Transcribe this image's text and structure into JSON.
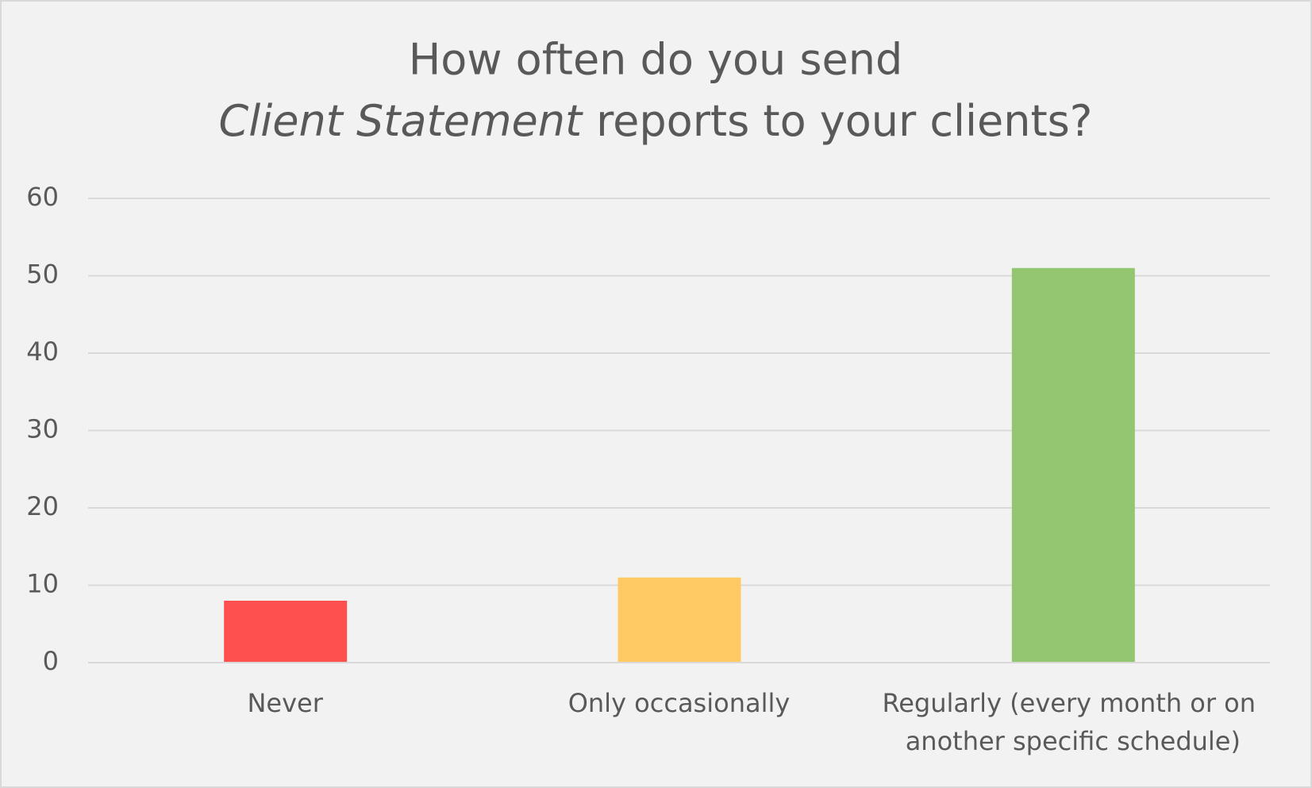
{
  "chart_data": {
    "type": "bar",
    "title": {
      "line1": "How often do you send",
      "line2_italic": "Client Statement",
      "line2_rest": "reports to your clients?"
    },
    "categories": [
      "Never",
      "Only occasionally",
      "Regularly (every month or on another specific schedule)"
    ],
    "values": [
      8,
      11,
      51
    ],
    "colors": [
      "#ff5050",
      "#ffca64",
      "#94c672"
    ],
    "ylim": [
      0,
      60
    ],
    "yticks": [
      0,
      10,
      20,
      30,
      40,
      50,
      60
    ],
    "grid": true
  }
}
